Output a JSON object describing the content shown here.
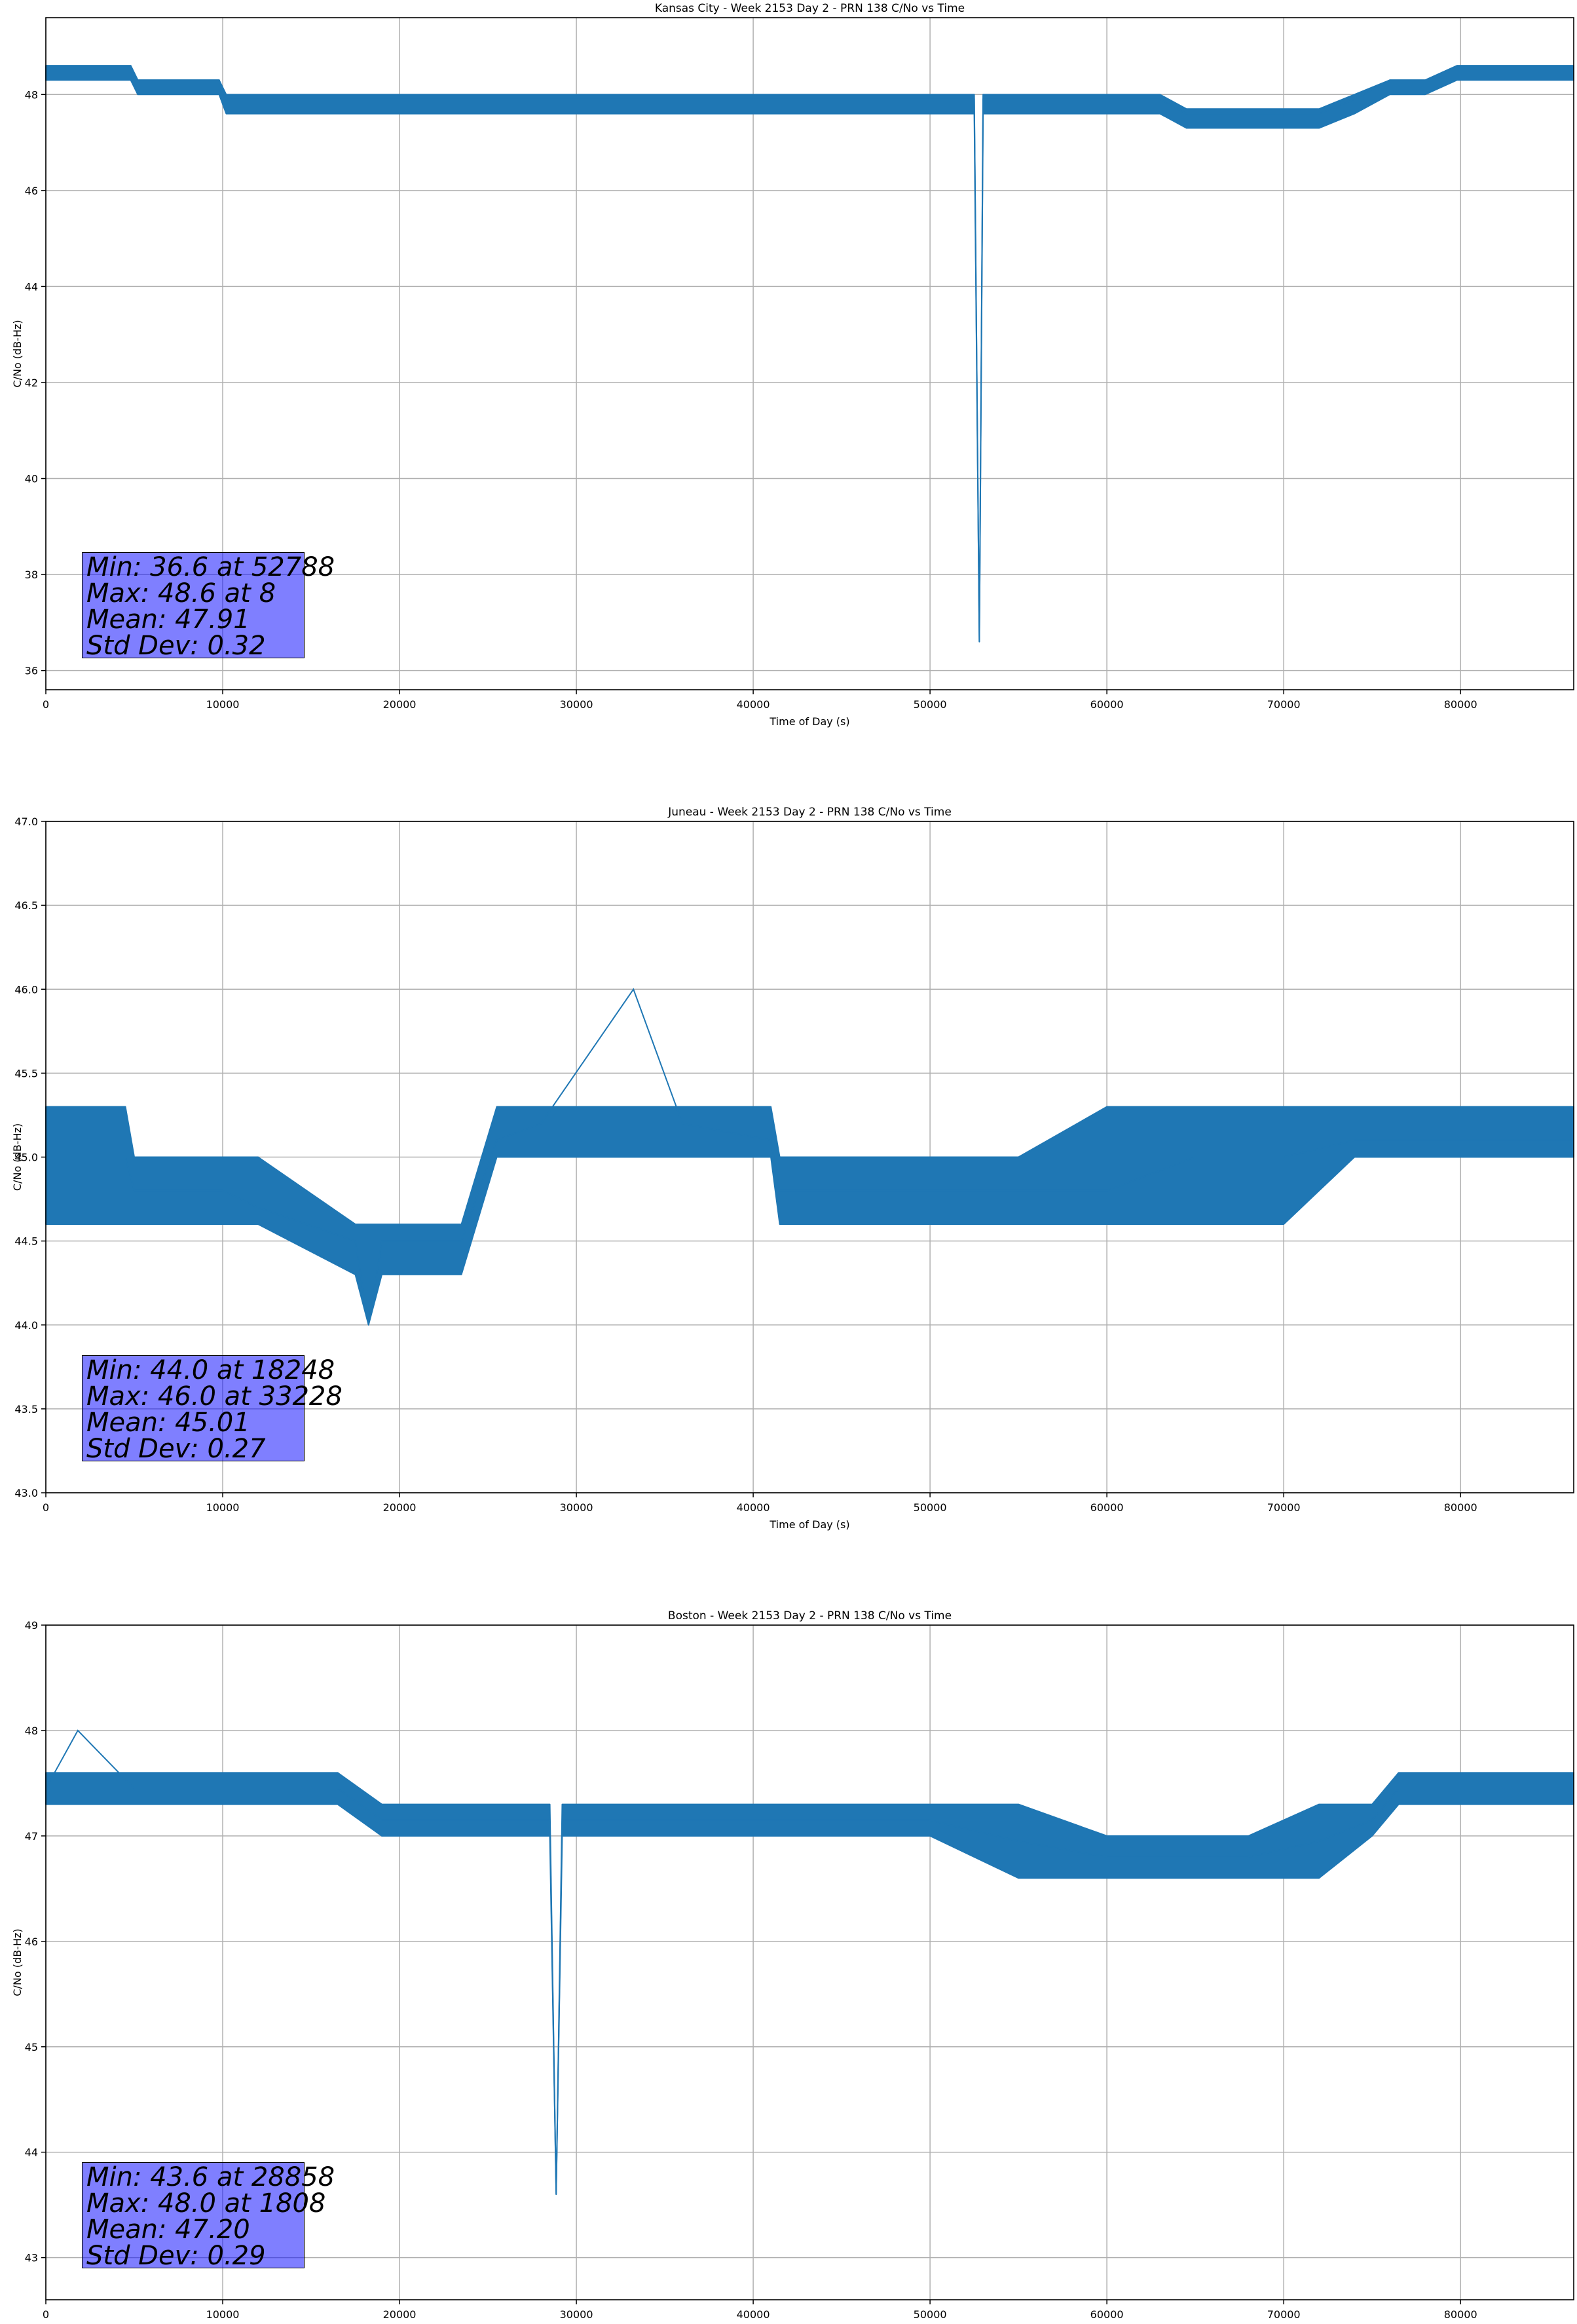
{
  "chart_data": [
    {
      "type": "line",
      "title": "Kansas City - Week 2153 Day 2 - PRN 138 C/No vs Time",
      "xlabel": "Time of Day (s)",
      "ylabel": "C/No (dB-Hz)",
      "xlim": [
        0,
        86400
      ],
      "ylim": [
        35.6,
        49.6
      ],
      "xticks": [
        0,
        10000,
        20000,
        30000,
        40000,
        50000,
        60000,
        70000,
        80000
      ],
      "yticks": [
        36,
        38,
        40,
        42,
        44,
        46,
        48
      ],
      "ytick_decimals": 0,
      "grid": true,
      "color": "#1f77b4",
      "series": [
        {
          "x": [
            0,
            4800,
            5200,
            9800,
            10200,
            13000,
            16000,
            26000,
            29000,
            32000,
            35000,
            40000,
            44000,
            48000,
            50000,
            52500,
            52788,
            53000,
            55000,
            58000,
            61000,
            63000,
            64500,
            66000,
            70000,
            72000,
            74000,
            76000,
            78000,
            79800,
            82000,
            84000,
            86400
          ],
          "y": [
            48.6,
            48.6,
            48.3,
            48.3,
            47.9,
            47.9,
            47.9,
            47.9,
            47.9,
            47.9,
            47.9,
            47.9,
            47.9,
            47.9,
            47.9,
            47.9,
            36.6,
            47.9,
            47.9,
            47.9,
            47.9,
            47.9,
            47.6,
            47.6,
            47.6,
            47.6,
            47.9,
            48.3,
            48.3,
            48.6,
            48.6,
            48.6,
            48.6
          ],
          "band_lo": [
            48.3,
            48.3,
            48.0,
            48.0,
            47.6,
            47.6,
            47.6,
            47.6,
            47.6,
            47.6,
            47.6,
            47.6,
            47.6,
            47.6,
            47.6,
            47.6,
            36.6,
            47.6,
            47.6,
            47.6,
            47.6,
            47.6,
            47.3,
            47.3,
            47.3,
            47.3,
            47.6,
            48.0,
            48.0,
            48.3,
            48.3,
            48.3,
            48.3
          ],
          "band_hi": [
            48.6,
            48.6,
            48.3,
            48.3,
            48.0,
            48.0,
            48.0,
            48.0,
            48.0,
            48.0,
            48.0,
            48.0,
            48.0,
            48.0,
            48.0,
            48.0,
            36.6,
            48.0,
            48.0,
            48.0,
            48.0,
            48.0,
            47.7,
            47.7,
            47.7,
            47.7,
            48.0,
            48.3,
            48.3,
            48.6,
            48.6,
            48.6,
            48.6
          ]
        }
      ],
      "stats": [
        "Min: 36.6 at 52788",
        "Max: 48.6 at 8",
        "Mean: 47.91",
        "Std Dev: 0.32"
      ]
    },
    {
      "type": "line",
      "title": "Juneau - Week 2153 Day 2 - PRN 138 C/No vs Time",
      "xlabel": "Time of Day (s)",
      "ylabel": "C/No (dB-Hz)",
      "xlim": [
        0,
        86400
      ],
      "ylim": [
        43.0,
        47.0
      ],
      "xticks": [
        0,
        10000,
        20000,
        30000,
        40000,
        50000,
        60000,
        70000,
        80000
      ],
      "yticks": [
        43.0,
        43.5,
        44.0,
        44.5,
        45.0,
        45.5,
        46.0,
        46.5,
        47.0
      ],
      "ytick_decimals": 1,
      "grid": true,
      "color": "#1f77b4",
      "series": [
        {
          "x": [
            0,
            4500,
            5000,
            10000,
            12000,
            17500,
            18248,
            19000,
            23500,
            25500,
            28000,
            33228,
            36000,
            41000,
            41500,
            50000,
            55000,
            60000,
            65000,
            70000,
            74000,
            78000,
            82000,
            86400
          ],
          "y": [
            45.0,
            45.0,
            44.8,
            44.8,
            44.7,
            44.5,
            44.0,
            44.5,
            44.5,
            45.1,
            45.2,
            46.0,
            45.2,
            45.1,
            44.8,
            44.8,
            44.8,
            44.8,
            45.0,
            45.0,
            45.1,
            45.1,
            45.1,
            45.1
          ],
          "band_lo": [
            44.6,
            44.6,
            44.6,
            44.6,
            44.6,
            44.3,
            44.0,
            44.3,
            44.3,
            45.0,
            45.0,
            45.0,
            45.0,
            45.0,
            44.6,
            44.6,
            44.6,
            44.6,
            44.6,
            44.6,
            45.0,
            45.0,
            45.0,
            45.0
          ],
          "band_hi": [
            45.3,
            45.3,
            45.0,
            45.0,
            45.0,
            44.6,
            44.6,
            44.6,
            44.6,
            45.3,
            45.3,
            45.3,
            45.3,
            45.3,
            45.0,
            45.0,
            45.0,
            45.3,
            45.3,
            45.3,
            45.3,
            45.3,
            45.3,
            45.3
          ]
        }
      ],
      "stats": [
        "Min: 44.0 at 18248",
        "Max: 46.0 at 33228",
        "Mean: 45.01",
        "Std Dev: 0.27"
      ]
    },
    {
      "type": "line",
      "title": "Boston - Week 2153 Day 2 - PRN 138 C/No vs Time",
      "xlabel": "Time of Day (s)",
      "ylabel": "C/No (dB-Hz)",
      "xlim": [
        0,
        86400
      ],
      "ylim": [
        42.6,
        49.0
      ],
      "xticks": [
        0,
        10000,
        20000,
        30000,
        40000,
        50000,
        60000,
        70000,
        80000
      ],
      "yticks": [
        43,
        44,
        45,
        46,
        47,
        48,
        49
      ],
      "ytick_decimals": 0,
      "grid": true,
      "color": "#1f77b4",
      "series": [
        {
          "x": [
            0,
            1808,
            5000,
            12600,
            16500,
            19000,
            24000,
            28500,
            28858,
            29200,
            35000,
            43000,
            50000,
            55000,
            60000,
            63000,
            68000,
            72000,
            75000,
            76500,
            80000,
            86400
          ],
          "y": [
            47.45,
            48.0,
            47.45,
            47.45,
            47.45,
            47.15,
            47.15,
            47.15,
            43.6,
            47.15,
            47.15,
            47.15,
            47.15,
            46.95,
            46.8,
            46.8,
            46.8,
            46.95,
            47.15,
            47.45,
            47.45,
            47.45
          ],
          "band_lo": [
            47.3,
            47.3,
            47.3,
            47.3,
            47.3,
            47.0,
            47.0,
            47.0,
            43.6,
            47.0,
            47.0,
            47.0,
            47.0,
            46.6,
            46.6,
            46.6,
            46.6,
            46.6,
            47.0,
            47.3,
            47.3,
            47.3
          ],
          "band_hi": [
            47.6,
            47.6,
            47.6,
            47.6,
            47.6,
            47.3,
            47.3,
            47.3,
            43.6,
            47.3,
            47.3,
            47.3,
            47.3,
            47.3,
            47.0,
            47.0,
            47.0,
            47.3,
            47.3,
            47.6,
            47.6,
            47.6
          ]
        }
      ],
      "stats": [
        "Min: 43.6 at 28858",
        "Max: 48.0 at 1808",
        "Mean: 47.20",
        "Std Dev: 0.29"
      ]
    }
  ]
}
